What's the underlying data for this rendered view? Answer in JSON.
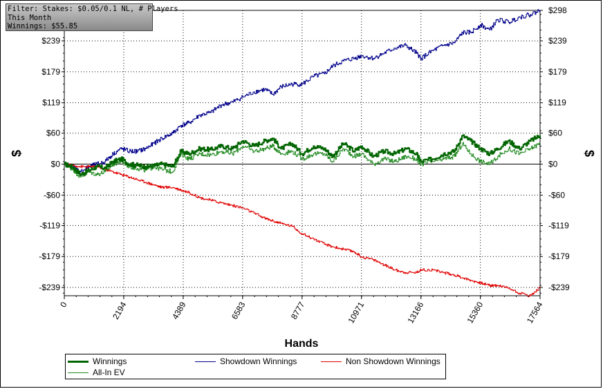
{
  "filter_box": {
    "line1": "Filter: Stakes: $0.05/0.1 NL, # Players",
    "line2": "This Month",
    "line3": "Winnings: $55.85"
  },
  "chart_data": {
    "type": "line",
    "xlabel": "Hands",
    "ylabel": "$",
    "xlim": [
      0,
      17564
    ],
    "ylim": [
      -255,
      298
    ],
    "x_ticks": [
      0,
      2194,
      4389,
      6583,
      8777,
      10971,
      13166,
      15360,
      17564
    ],
    "x_tick_labels": [
      "0",
      "2194",
      "4389",
      "6583",
      "8777",
      "10971",
      "13166",
      "15360",
      "17564"
    ],
    "y_ticks": [
      298,
      239,
      179,
      119,
      60,
      0,
      -60,
      -119,
      -179,
      -239
    ],
    "y_tick_labels": [
      "$298",
      "$239",
      "$179",
      "$119",
      "$60",
      "$0",
      "-$60",
      "-$119",
      "-$179",
      "-$239"
    ],
    "grid": true,
    "legend_position": "bottom",
    "series": [
      {
        "name": "Winnings",
        "color": "#006400",
        "width": 2,
        "x": [
          0,
          300,
          600,
          900,
          1200,
          1500,
          1800,
          2100,
          2400,
          2700,
          3000,
          3300,
          3600,
          4000,
          4300,
          4600,
          5000,
          5400,
          5800,
          6200,
          6583,
          7000,
          7400,
          7700,
          8000,
          8400,
          8777,
          9200,
          9600,
          9900,
          10300,
          10700,
          10971,
          11400,
          11800,
          12200,
          12600,
          13000,
          13166,
          13600,
          14000,
          14400,
          14700,
          15000,
          15360,
          15700,
          16000,
          16400,
          16800,
          17200,
          17564
        ],
        "y": [
          0,
          -5,
          -20,
          -12,
          -5,
          -8,
          5,
          10,
          0,
          -2,
          -5,
          -3,
          0,
          -5,
          25,
          20,
          30,
          28,
          35,
          30,
          45,
          35,
          45,
          50,
          30,
          40,
          20,
          35,
          30,
          15,
          40,
          25,
          35,
          15,
          25,
          20,
          30,
          20,
          5,
          10,
          20,
          25,
          55,
          45,
          30,
          20,
          30,
          45,
          30,
          45,
          55.85
        ]
      },
      {
        "name": "All-In EV",
        "color": "#228b22",
        "width": 1,
        "x": [
          0,
          300,
          600,
          900,
          1200,
          1500,
          1800,
          2100,
          2400,
          2700,
          3000,
          3300,
          3600,
          4000,
          4300,
          4600,
          5000,
          5400,
          5800,
          6200,
          6583,
          7000,
          7400,
          7700,
          8000,
          8400,
          8777,
          9200,
          9600,
          9900,
          10300,
          10700,
          10971,
          11400,
          11800,
          12200,
          12600,
          13000,
          13166,
          13600,
          14000,
          14400,
          14700,
          15000,
          15360,
          15700,
          16000,
          16400,
          16800,
          17200,
          17564
        ],
        "y": [
          0,
          -10,
          -25,
          -15,
          -20,
          -15,
          0,
          5,
          -5,
          -8,
          -12,
          -5,
          -10,
          -15,
          20,
          10,
          20,
          18,
          25,
          20,
          35,
          25,
          30,
          35,
          20,
          25,
          10,
          20,
          20,
          5,
          30,
          15,
          20,
          0,
          10,
          5,
          15,
          10,
          0,
          5,
          10,
          15,
          40,
          20,
          5,
          0,
          15,
          30,
          20,
          30,
          40
        ]
      },
      {
        "name": "Showdown Winnings",
        "color": "#00008b",
        "width": 1,
        "x": [
          0,
          300,
          600,
          900,
          1200,
          1500,
          1800,
          2100,
          2400,
          2700,
          3000,
          3300,
          3600,
          4000,
          4300,
          4600,
          5000,
          5400,
          5800,
          6200,
          6583,
          7000,
          7400,
          7700,
          8000,
          8400,
          8777,
          9200,
          9600,
          9900,
          10300,
          10700,
          10971,
          11400,
          11800,
          12200,
          12600,
          13000,
          13166,
          13600,
          14000,
          14400,
          14700,
          15000,
          15360,
          15700,
          16000,
          16400,
          16800,
          17200,
          17564
        ],
        "y": [
          0,
          -5,
          -15,
          -5,
          0,
          5,
          20,
          30,
          25,
          25,
          30,
          40,
          50,
          60,
          75,
          80,
          95,
          100,
          115,
          120,
          130,
          140,
          145,
          135,
          150,
          155,
          155,
          170,
          175,
          190,
          200,
          205,
          210,
          205,
          215,
          225,
          230,
          215,
          205,
          220,
          230,
          235,
          255,
          255,
          270,
          260,
          280,
          275,
          285,
          290,
          298
        ]
      },
      {
        "name": "Non Showdown Winnings",
        "color": "#e00000",
        "width": 1,
        "x": [
          0,
          300,
          600,
          900,
          1200,
          1500,
          1800,
          2100,
          2400,
          2700,
          3000,
          3300,
          3600,
          4000,
          4300,
          4600,
          5000,
          5400,
          5800,
          6200,
          6583,
          7000,
          7400,
          7700,
          8000,
          8400,
          8777,
          9200,
          9600,
          9900,
          10300,
          10700,
          10971,
          11400,
          11800,
          12200,
          12600,
          13000,
          13166,
          13600,
          14000,
          14400,
          14700,
          15000,
          15360,
          15700,
          16000,
          16400,
          16800,
          17200,
          17564
        ],
        "y": [
          0,
          -2,
          -5,
          -5,
          -5,
          -10,
          -15,
          -20,
          -25,
          -30,
          -35,
          -40,
          -45,
          -45,
          -50,
          -55,
          -65,
          -70,
          -75,
          -80,
          -85,
          -95,
          -105,
          -110,
          -115,
          -120,
          -135,
          -145,
          -155,
          -160,
          -165,
          -170,
          -180,
          -185,
          -195,
          -205,
          -210,
          -210,
          -205,
          -205,
          -210,
          -215,
          -220,
          -225,
          -230,
          -235,
          -235,
          -240,
          -250,
          -255,
          -239
        ]
      }
    ]
  },
  "legend": {
    "winnings": "Winnings",
    "showdown": "Showdown Winnings",
    "non_showdown": "Non Showdown Winnings",
    "allin": "All-In EV"
  }
}
